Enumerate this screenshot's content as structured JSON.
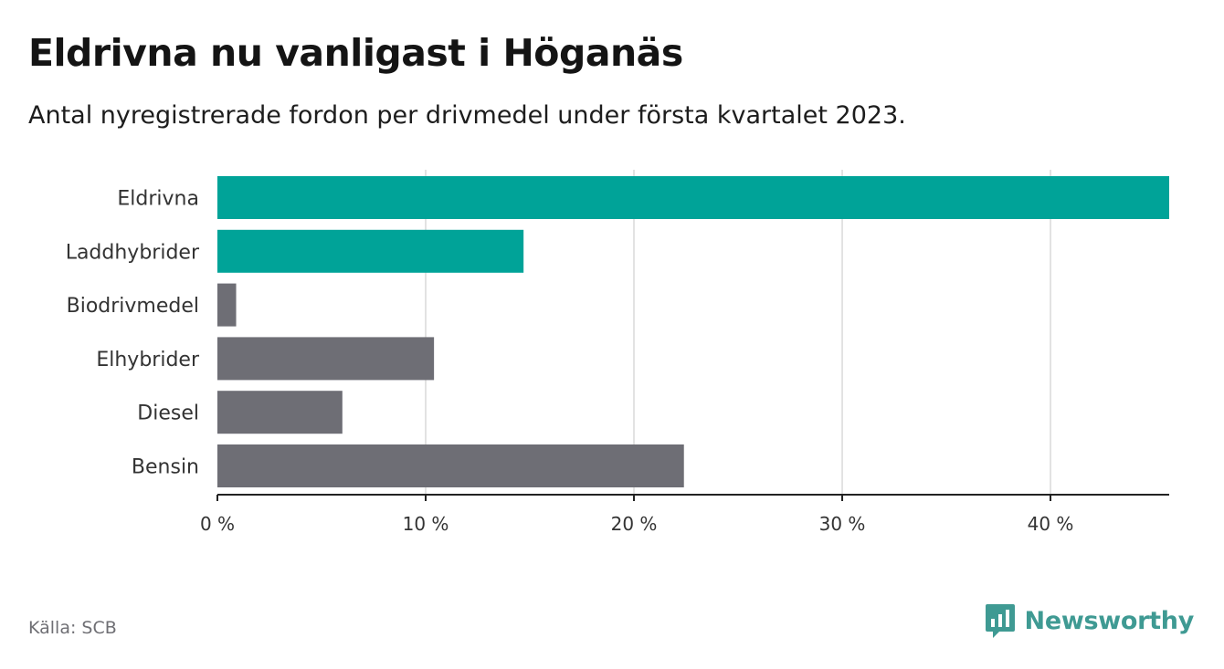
{
  "title": "Eldrivna nu vanligast i Höganäs",
  "subtitle": "Antal nyregistrerade fordon per drivmedel under första kvartalet 2023.",
  "source": "Källa: SCB",
  "brand": {
    "name": "Newsworthy",
    "logo_icon": "bar-chart-speech-bubble-icon",
    "color": "#3f9a93"
  },
  "chart_data": {
    "type": "bar",
    "orientation": "horizontal",
    "categories": [
      "Eldrivna",
      "Laddhybrider",
      "Biodrivmedel",
      "Elhybrider",
      "Diesel",
      "Bensin"
    ],
    "values": [
      45.7,
      14.7,
      0.9,
      10.4,
      6.0,
      22.4
    ],
    "colors": [
      "#00a398",
      "#00a398",
      "#6e6e75",
      "#6e6e75",
      "#6e6e75",
      "#6e6e75"
    ],
    "xlim": [
      0,
      45.7
    ],
    "xticks": [
      0,
      10,
      20,
      30,
      40
    ],
    "xtick_labels": [
      "0 %",
      "10 %",
      "20 %",
      "30 %",
      "40 %"
    ],
    "grid": "vertical",
    "xlabel": "",
    "ylabel": ""
  }
}
